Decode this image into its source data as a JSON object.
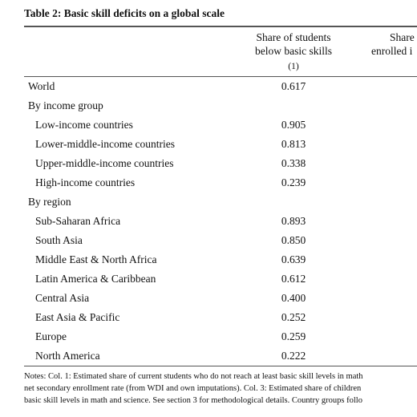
{
  "title": "Table 2: Basic skill deficits on a global scale",
  "header": {
    "col1": [
      "Share of students",
      "below basic skills"
    ],
    "col1_number": "(1)",
    "col2": [
      "Share",
      "enrolled i"
    ]
  },
  "table": {
    "rows": [
      {
        "label": "World",
        "value": "0.617"
      }
    ],
    "groups": [
      {
        "label": "By income group",
        "rows": [
          {
            "label": "Low-income countries",
            "value": "0.905"
          },
          {
            "label": "Lower-middle-income countries",
            "value": "0.813"
          },
          {
            "label": "Upper-middle-income countries",
            "value": "0.338"
          },
          {
            "label": "High-income countries",
            "value": "0.239"
          }
        ]
      },
      {
        "label": "By region",
        "rows": [
          {
            "label": "Sub-Saharan Africa",
            "value": "0.893"
          },
          {
            "label": "South Asia",
            "value": "0.850"
          },
          {
            "label": "Middle East & North Africa",
            "value": "0.639"
          },
          {
            "label": "Latin America & Caribbean",
            "value": "0.612"
          },
          {
            "label": "Central Asia",
            "value": "0.400"
          },
          {
            "label": "East Asia & Pacific",
            "value": "0.252"
          },
          {
            "label": "Europe",
            "value": "0.259"
          },
          {
            "label": "North America",
            "value": "0.222"
          }
        ]
      }
    ]
  },
  "notes": [
    "Notes: Col. 1: Estimated share of current students who do not reach at least basic skill levels in math",
    "net secondary enrollment rate (from WDI and own imputations). Col. 3: Estimated share of children",
    "basic skill levels in math and science. See section 3 for methodological details. Country groups follo"
  ]
}
